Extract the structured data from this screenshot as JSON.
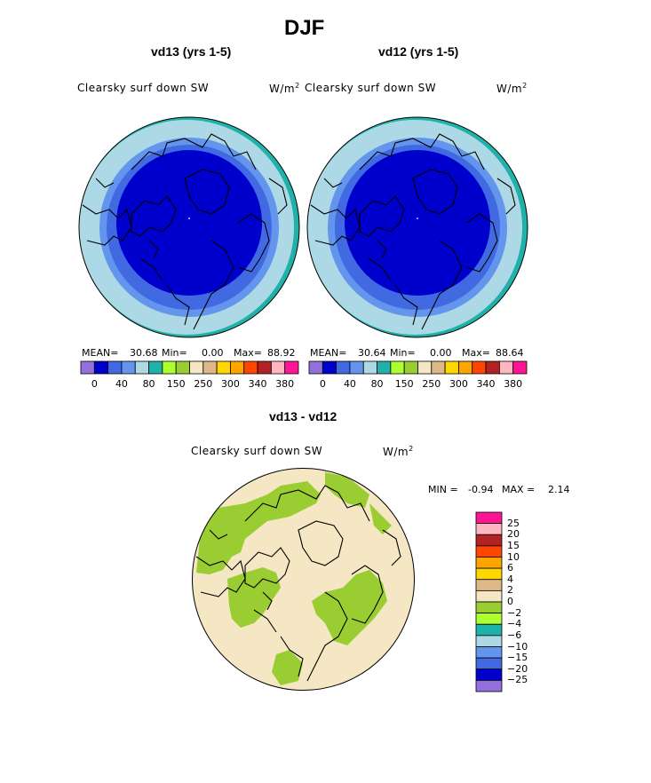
{
  "figure": {
    "title": "DJF",
    "colors": {
      "abs_scale": [
        "#9370db",
        "#0000cd",
        "#4169e1",
        "#6495ed",
        "#add8e6",
        "#20b2aa",
        "#adff2f",
        "#9acd32",
        "#f5e6c4",
        "#deb887",
        "#ffd700",
        "#ffa500",
        "#ff4500",
        "#b22222",
        "#ffb6c1",
        "#ff1493"
      ],
      "diff_scale": [
        "#9370db",
        "#0000cd",
        "#4169e1",
        "#6495ed",
        "#add8e6",
        "#20b2aa",
        "#adff2f",
        "#9acd32",
        "#f5e6c4",
        "#deb887",
        "#ffd700",
        "#ffa500",
        "#ff4500",
        "#b22222",
        "#ffb6c1",
        "#ff1493"
      ]
    }
  },
  "chart_data": [
    {
      "type": "heatmap",
      "title": "vd13 (yrs 1-5)",
      "variable": "Clearsky surf down SW",
      "units_base": "W/m",
      "units_exp": "2",
      "mean_label": "MEAN=",
      "mean": "30.68",
      "min_label": "Min=",
      "min": "0.00",
      "max_label": "Max=",
      "max": "88.92",
      "colorbar_ticks": [
        "0",
        "40",
        "80",
        "150",
        "250",
        "300",
        "340",
        "380"
      ]
    },
    {
      "type": "heatmap",
      "title": "vd12 (yrs 1-5)",
      "variable": "Clearsky surf down SW",
      "units_base": "W/m",
      "units_exp": "2",
      "mean_label": "MEAN=",
      "mean": "30.64",
      "min_label": "Min=",
      "min": "0.00",
      "max_label": "Max=",
      "max": "88.64",
      "colorbar_ticks": [
        "0",
        "40",
        "80",
        "150",
        "250",
        "300",
        "340",
        "380"
      ]
    },
    {
      "type": "heatmap",
      "title": "vd13 - vd12",
      "variable": "Clearsky surf down SW",
      "units_base": "W/m",
      "units_exp": "2",
      "min_label": "MIN =",
      "min": "-0.94",
      "max_label": "MAX =",
      "max": "2.14",
      "colorbar_ticks": [
        "25",
        "20",
        "15",
        "10",
        "6",
        "4",
        "2",
        "0",
        "−2",
        "−4",
        "−6",
        "−10",
        "−15",
        "−20",
        "−25"
      ]
    }
  ]
}
